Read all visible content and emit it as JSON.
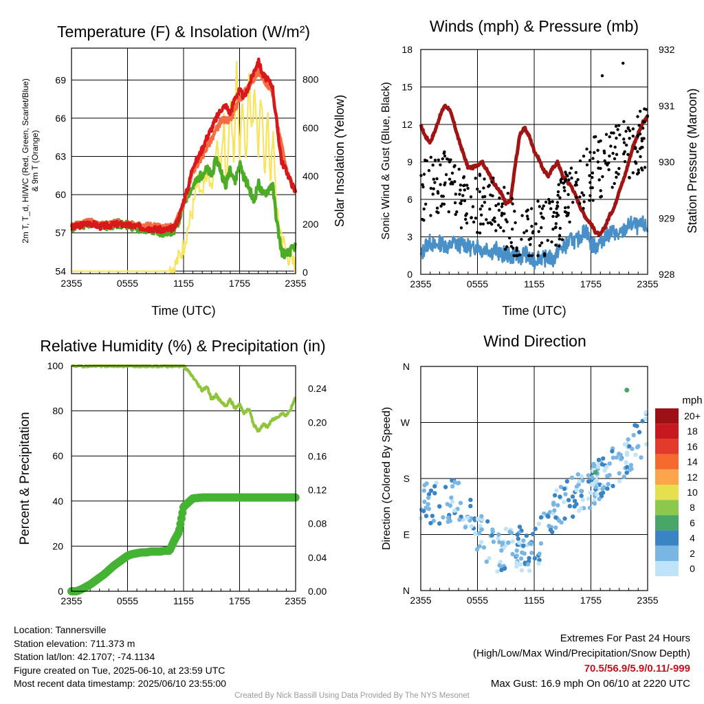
{
  "colors": {
    "temp_2m": "#d7191c",
    "heat_index": "#f46d43",
    "dewpoint": "#4dac26",
    "insolation": "#f7e35c",
    "sonic_wind": "#4a90c8",
    "gust": "#000000",
    "pressure": "#a01414",
    "rh": "#8fc53a",
    "precip": "#44b232"
  },
  "speed_legend": {
    "title": "mph",
    "bins": [
      {
        "label": "20+",
        "color": "#9c1016"
      },
      {
        "label": "18",
        "color": "#c7171f"
      },
      {
        "label": "16",
        "color": "#e23a2b"
      },
      {
        "label": "14",
        "color": "#f3692e"
      },
      {
        "label": "12",
        "color": "#fba44a"
      },
      {
        "label": "10",
        "color": "#e6e04e"
      },
      {
        "label": "8",
        "color": "#8cc84b"
      },
      {
        "label": "6",
        "color": "#47a568"
      },
      {
        "label": "4",
        "color": "#3b84c4"
      },
      {
        "label": "2",
        "color": "#7ab6e4"
      },
      {
        "label": "0",
        "color": "#bfe3f7"
      }
    ]
  },
  "chart_data": [
    {
      "type": "line",
      "title": "Temperature (F) & Insolation (W/m²)",
      "xlabel": "Time (UTC)",
      "ylabel": "2m T, T_d, HI/WC (Red, Green, Scarlet/Blue) & 9m T (Orange)",
      "y2label": "Solar Insolation (Yellow)",
      "x_ticks": [
        "2355",
        "0555",
        "1155",
        "1755",
        "2355"
      ],
      "ylim": [
        53.8,
        71.5
      ],
      "y_ticks": [
        54,
        57,
        60,
        63,
        66,
        69
      ],
      "y2lim": [
        -5,
        930
      ],
      "y2_ticks": [
        0,
        200,
        400,
        600,
        800
      ],
      "series": [
        {
          "key": "temp",
          "axis": "left",
          "x": [
            0,
            1,
            2,
            3,
            4,
            5,
            6,
            7,
            8,
            9,
            10,
            11,
            11.5,
            12,
            12.5,
            13,
            13.5,
            14,
            14.5,
            15,
            15.5,
            16,
            16.5,
            17,
            17.5,
            18,
            18.5,
            19,
            19.5,
            20,
            20.5,
            21,
            21.5,
            22,
            22.5,
            23,
            23.5,
            24
          ],
          "y": [
            57.4,
            57.6,
            57.8,
            57.5,
            57.6,
            57.7,
            57.6,
            57.5,
            57.4,
            57.3,
            57.2,
            57.4,
            58.2,
            59.5,
            60.6,
            62.3,
            62.8,
            63.6,
            64.5,
            65.2,
            66.0,
            66.7,
            67.0,
            66.4,
            67.6,
            68.2,
            67.6,
            68.6,
            69.6,
            70.5,
            69.4,
            69.0,
            68.6,
            65.5,
            62.6,
            61.9,
            61.0,
            60.2
          ]
        },
        {
          "key": "nine_m",
          "axis": "left",
          "x": [
            0,
            1,
            2,
            3,
            4,
            5,
            6,
            7,
            8,
            9,
            10,
            11,
            12,
            12.5,
            13,
            14,
            15,
            16,
            17,
            17.5,
            18,
            19,
            20,
            21,
            21.5,
            22,
            23,
            24
          ],
          "y": [
            57.5,
            57.7,
            57.9,
            57.6,
            57.7,
            57.8,
            57.7,
            57.6,
            57.6,
            57.5,
            57.4,
            57.5,
            59.3,
            60.4,
            61.8,
            63.0,
            64.4,
            65.8,
            65.9,
            66.8,
            67.5,
            68.5,
            69.7,
            68.6,
            68.2,
            65.6,
            62.0,
            60.1
          ]
        },
        {
          "key": "dew",
          "axis": "left",
          "x": [
            0,
            1,
            2,
            3,
            4,
            5,
            6,
            7,
            8,
            9,
            10,
            11,
            11.5,
            12,
            12.5,
            13,
            13.5,
            14,
            14.5,
            15,
            15.5,
            16,
            16.5,
            17,
            17.5,
            18,
            18.5,
            19,
            19.5,
            20,
            20.5,
            21,
            21.5,
            22,
            22.5,
            23,
            23.5,
            24
          ],
          "y": [
            57.4,
            57.6,
            57.8,
            57.5,
            57.6,
            57.7,
            57.6,
            57.4,
            57.3,
            57.1,
            57.0,
            57.2,
            58.0,
            59.2,
            60.1,
            60.6,
            61.2,
            61.6,
            62.0,
            61.5,
            62.8,
            61.9,
            60.6,
            62.2,
            61.0,
            62.5,
            61.3,
            60.6,
            59.4,
            60.9,
            60.0,
            60.3,
            60.9,
            57.8,
            55.5,
            55.3,
            55.6,
            56.0
          ]
        },
        {
          "key": "insolation",
          "axis": "right",
          "x": [
            0,
            2,
            4,
            6,
            8,
            10,
            11,
            11.5,
            12,
            12.5,
            13,
            13.5,
            14,
            14.5,
            15,
            15.5,
            16,
            16.3,
            16.6,
            17,
            17.4,
            17.7,
            18,
            18.3,
            18.7,
            19,
            19.3,
            19.6,
            20,
            20.3,
            20.7,
            21,
            21.3,
            21.6,
            22,
            22.4,
            22.8,
            23.2,
            23.6,
            24
          ],
          "y": [
            5,
            5,
            5,
            5,
            5,
            8,
            20,
            60,
            110,
            190,
            260,
            370,
            300,
            420,
            330,
            520,
            440,
            640,
            350,
            700,
            460,
            900,
            480,
            760,
            420,
            880,
            560,
            780,
            500,
            720,
            420,
            660,
            380,
            560,
            240,
            170,
            110,
            70,
            40,
            30
          ]
        }
      ]
    },
    {
      "type": "line",
      "title": "Winds (mph) & Pressure (mb)",
      "xlabel": "Time (UTC)",
      "ylabel": "Sonic Wind & Gust (Blue, Black)",
      "y2label": "Station Pressure (Maroon)",
      "x_ticks": [
        "2355",
        "0555",
        "1155",
        "1755",
        "2355"
      ],
      "ylim": [
        0,
        18
      ],
      "y_ticks": [
        0,
        3,
        6,
        9,
        12,
        15,
        18
      ],
      "y2lim": [
        928,
        932
      ],
      "y2_ticks": [
        928,
        929,
        930,
        931,
        932
      ],
      "series": [
        {
          "key": "pressure",
          "axis": "right",
          "x": [
            0,
            0.5,
            1,
            1.5,
            2,
            2.5,
            3,
            3.5,
            4,
            4.5,
            5,
            5.5,
            6,
            6.5,
            7,
            7.5,
            8,
            8.5,
            9,
            9.5,
            10,
            10.5,
            11,
            11.5,
            12,
            12.5,
            13,
            13.5,
            14,
            14.5,
            15,
            15.5,
            16,
            16.5,
            17,
            17.5,
            18,
            18.5,
            19,
            19.5,
            20,
            20.5,
            21,
            21.5,
            22,
            22.5,
            23,
            23.5,
            24
          ],
          "y": [
            930.65,
            930.45,
            930.35,
            930.55,
            930.8,
            931.0,
            930.95,
            930.7,
            930.4,
            930.15,
            929.9,
            929.9,
            929.95,
            930.0,
            929.85,
            929.7,
            929.55,
            929.45,
            929.25,
            929.3,
            929.95,
            930.5,
            930.6,
            930.45,
            930.2,
            930.05,
            929.85,
            929.75,
            929.9,
            930.0,
            929.75,
            929.65,
            929.55,
            929.35,
            929.15,
            929.0,
            928.9,
            928.75,
            928.7,
            928.85,
            929.05,
            929.2,
            929.5,
            929.7,
            930.0,
            930.3,
            930.5,
            930.7,
            930.8
          ]
        },
        {
          "key": "sonic",
          "axis": "left",
          "x": [
            0,
            0.5,
            1,
            1.5,
            2,
            2.5,
            3,
            3.5,
            4,
            4.5,
            5,
            5.5,
            6,
            6.5,
            7,
            7.5,
            8,
            8.5,
            9,
            9.5,
            10,
            10.5,
            11,
            11.5,
            12,
            12.5,
            13,
            13.5,
            14,
            14.5,
            15,
            15.5,
            16,
            16.5,
            17,
            17.5,
            18,
            18.5,
            19,
            19.5,
            20,
            20.5,
            21,
            21.5,
            22,
            22.5,
            23,
            23.5,
            24
          ],
          "y": [
            1.4,
            2.3,
            2.6,
            2.2,
            2.5,
            2.4,
            2.1,
            2.6,
            2.3,
            2.5,
            2.2,
            2.0,
            2.4,
            1.9,
            2.2,
            1.8,
            2.0,
            1.5,
            1.7,
            1.4,
            1.6,
            1.3,
            1.8,
            1.2,
            1.0,
            1.5,
            1.2,
            1.4,
            1.1,
            1.9,
            2.1,
            2.4,
            2.8,
            2.6,
            3.2,
            3.6,
            2.4,
            2.2,
            2.6,
            3.0,
            3.3,
            3.4,
            3.0,
            3.5,
            3.9,
            4.1,
            3.7,
            4.0,
            3.6
          ]
        }
      ],
      "gust_trend": {
        "x": [
          0,
          2,
          4,
          6,
          8,
          10,
          12,
          14,
          16,
          18,
          20,
          22,
          24
        ],
        "y": [
          6.5,
          7.6,
          6.3,
          5.9,
          5.4,
          3.5,
          3.3,
          3.9,
          6.8,
          8.2,
          9.3,
          10.2,
          11.0
        ]
      },
      "max_gust": 16.9
    },
    {
      "type": "line",
      "title": "Relative Humidity (%) & Precipitation (in)",
      "ylabel": "Percent & Precipitation",
      "x_ticks": [
        "2355",
        "0555",
        "1155",
        "1755",
        "2355"
      ],
      "ylim": [
        0,
        100
      ],
      "y_ticks": [
        0,
        20,
        40,
        60,
        80,
        100
      ],
      "y2lim": [
        0,
        0.267
      ],
      "y2_ticks": [
        "0.00",
        "0.04",
        "0.08",
        "0.12",
        "0.16",
        "0.20",
        "0.24"
      ],
      "series": [
        {
          "key": "rh",
          "axis": "left",
          "x": [
            0,
            12,
            13,
            13.5,
            14,
            14.5,
            15,
            15.5,
            16,
            16.5,
            17,
            17.5,
            18,
            18.5,
            19,
            19.5,
            20,
            20.5,
            21,
            21.5,
            22,
            22.5,
            23,
            23.5,
            24
          ],
          "y": [
            100,
            100,
            95,
            92,
            89,
            91,
            85,
            87,
            84,
            82,
            85,
            81,
            83,
            79,
            81,
            74,
            71,
            74,
            73,
            76,
            77,
            79,
            78,
            81,
            86
          ]
        },
        {
          "key": "precip",
          "axis": "right",
          "x": [
            0,
            0.5,
            1,
            1.5,
            2,
            2.5,
            3,
            3.5,
            4,
            4.5,
            5,
            5.5,
            6,
            6.5,
            7,
            7.5,
            8,
            8.5,
            9,
            9.5,
            10,
            10.5,
            11,
            11.5,
            12,
            13,
            14,
            15,
            16,
            17,
            18,
            19,
            20,
            21,
            22,
            23,
            24
          ],
          "y": [
            0.0,
            0.0,
            0.002,
            0.005,
            0.008,
            0.012,
            0.016,
            0.02,
            0.025,
            0.03,
            0.034,
            0.038,
            0.042,
            0.044,
            0.045,
            0.046,
            0.046,
            0.047,
            0.047,
            0.047,
            0.048,
            0.048,
            0.06,
            0.07,
            0.1,
            0.11,
            0.111,
            0.111,
            0.111,
            0.111,
            0.111,
            0.111,
            0.111,
            0.111,
            0.111,
            0.111,
            0.111
          ]
        }
      ]
    },
    {
      "type": "scatter",
      "title": "Wind Direction",
      "ylabel": "Direction (Colored By Speed)",
      "x_ticks": [
        "2355",
        "0555",
        "1155",
        "1755",
        "2355"
      ],
      "y_ticks": [
        "N",
        "E",
        "S",
        "W",
        "N"
      ],
      "ylim": [
        0,
        360
      ],
      "trend": {
        "x": [
          0,
          2,
          4,
          6,
          8,
          10,
          12,
          14,
          16,
          18,
          20,
          22,
          24
        ],
        "dir": [
          145,
          140,
          150,
          90,
          65,
          70,
          60,
          130,
          150,
          165,
          190,
          220,
          255
        ]
      }
    }
  ],
  "info": {
    "location": "Location: Tannersville",
    "elevation": "Station elevation: 711.373 m",
    "latlon": "Station lat/lon: 42.1707; -74.1134",
    "created": "Figure created on Tue, 2025-06-10, at 23:59 UTC",
    "recent": "Most recent data timestamp: 2025/06/10 23:55:00"
  },
  "extremes": {
    "title": "Extremes For Past 24 Hours",
    "subtitle": "(High/Low/Max Wind/Precipitation/Snow Depth)",
    "values": "70.5/56.9/5.9/0.11/-999",
    "gust": "Max Gust: 16.9 mph On 06/10 at 2220 UTC"
  },
  "credit": "Created By Nick Bassill Using Data Provided By The NYS Mesonet"
}
